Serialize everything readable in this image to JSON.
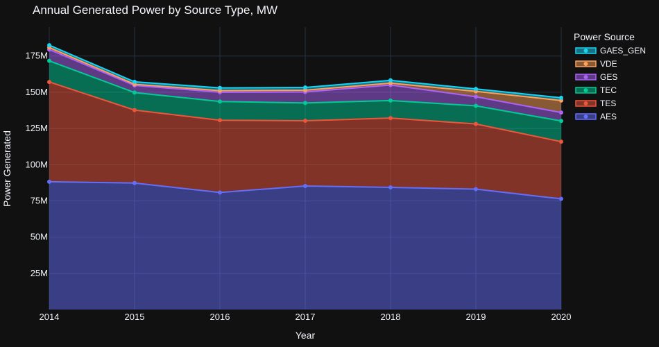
{
  "chart_data": {
    "type": "area",
    "stacked": true,
    "title": "Annual Generated Power by Source Type, MW",
    "xlabel": "Year",
    "ylabel": "Power Generated",
    "x": [
      2014,
      2015,
      2016,
      2017,
      2018,
      2019,
      2020
    ],
    "x_ticks": [
      "2014",
      "2015",
      "2016",
      "2017",
      "2018",
      "2019",
      "2020"
    ],
    "ylim": [
      0,
      195000000
    ],
    "y_ticks": [
      25000000,
      50000000,
      75000000,
      100000000,
      125000000,
      150000000,
      175000000
    ],
    "y_tick_labels": [
      "25M",
      "50M",
      "75M",
      "100M",
      "125M",
      "150M",
      "175M"
    ],
    "grid": true,
    "legend_title": "Power Source",
    "legend_position": "top-right",
    "series": [
      {
        "name": "AES",
        "color": "#636efa",
        "values": [
          88200000,
          87300000,
          80800000,
          85300000,
          84300000,
          83100000,
          76400000
        ]
      },
      {
        "name": "TES",
        "color": "#ef553b",
        "values": [
          68900000,
          50400000,
          49900000,
          45000000,
          47900000,
          45000000,
          39500000
        ]
      },
      {
        "name": "TEC",
        "color": "#00cc96",
        "values": [
          14600000,
          12100000,
          12900000,
          12300000,
          12100000,
          12500000,
          14300000
        ]
      },
      {
        "name": "GES",
        "color": "#ab63fa",
        "values": [
          7800000,
          4900000,
          6400000,
          7600000,
          10700000,
          6300000,
          5800000
        ]
      },
      {
        "name": "VDE",
        "color": "#ffa15a",
        "values": [
          1400000,
          800000,
          1100000,
          1200000,
          1300000,
          3700000,
          8300000
        ]
      },
      {
        "name": "GAES_GEN",
        "color": "#19d3f3",
        "values": [
          1600000,
          1700000,
          1900000,
          1900000,
          1900000,
          1700000,
          1900000
        ]
      }
    ]
  }
}
